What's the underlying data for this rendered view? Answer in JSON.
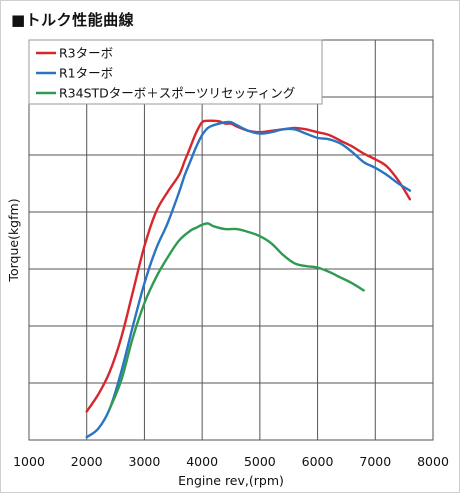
{
  "chart_data": {
    "type": "line",
    "title": "■トルク性能曲線",
    "xlabel": "Engine rev,(rpm)",
    "ylabel": "Torque(kgfm)",
    "xlim": [
      1000,
      8000
    ],
    "xticks": [
      "1000",
      "2000",
      "3000",
      "4000",
      "5000",
      "6000",
      "7000",
      "8000"
    ],
    "y_tick_labels_shown": false,
    "grid": true,
    "legend_position": "top-left",
    "series": [
      {
        "name": "R3ターボ",
        "color": "#d7272d",
        "x": [
          2000,
          2200,
          2400,
          2600,
          2800,
          3000,
          3200,
          3400,
          3600,
          3700,
          3800,
          3900,
          4000,
          4100,
          4200,
          4300,
          4400,
          4500,
          4600,
          4800,
          5000,
          5200,
          5400,
          5600,
          5800,
          6000,
          6200,
          6400,
          6600,
          6800,
          7000,
          7200,
          7400,
          7600
        ],
        "y": [
          0.1,
          0.16,
          0.24,
          0.36,
          0.52,
          0.68,
          0.8,
          0.87,
          0.93,
          0.98,
          1.03,
          1.08,
          1.115,
          1.12,
          1.12,
          1.118,
          1.11,
          1.11,
          1.1,
          1.085,
          1.08,
          1.085,
          1.09,
          1.095,
          1.09,
          1.08,
          1.07,
          1.05,
          1.03,
          1.005,
          0.985,
          0.96,
          0.91,
          0.845
        ]
      },
      {
        "name": "R1ターボ",
        "color": "#2a74c1",
        "x": [
          2000,
          2200,
          2400,
          2600,
          2800,
          3000,
          3200,
          3400,
          3600,
          3700,
          3800,
          3900,
          4000,
          4100,
          4200,
          4300,
          4400,
          4500,
          4600,
          4800,
          5000,
          5200,
          5400,
          5600,
          5800,
          6000,
          6200,
          6400,
          6600,
          6800,
          7000,
          7200,
          7400,
          7600
        ],
        "y": [
          0.01,
          0.04,
          0.11,
          0.24,
          0.4,
          0.55,
          0.67,
          0.76,
          0.87,
          0.93,
          0.98,
          1.03,
          1.07,
          1.095,
          1.105,
          1.11,
          1.115,
          1.115,
          1.105,
          1.085,
          1.075,
          1.08,
          1.09,
          1.09,
          1.075,
          1.06,
          1.055,
          1.04,
          1.01,
          0.975,
          0.955,
          0.93,
          0.9,
          0.875
        ]
      },
      {
        "name": "R34STDターボ＋スポーツリセッティング",
        "color": "#2f9a52",
        "x": [
          2400,
          2600,
          2800,
          3000,
          3200,
          3400,
          3600,
          3800,
          3900,
          4000,
          4100,
          4200,
          4400,
          4600,
          4800,
          5000,
          5200,
          5400,
          5600,
          5800,
          6000,
          6200,
          6400,
          6600,
          6800
        ],
        "y": [
          0.11,
          0.21,
          0.36,
          0.48,
          0.57,
          0.64,
          0.7,
          0.735,
          0.745,
          0.755,
          0.76,
          0.75,
          0.74,
          0.74,
          0.73,
          0.715,
          0.69,
          0.65,
          0.62,
          0.61,
          0.605,
          0.59,
          0.57,
          0.55,
          0.525
        ]
      }
    ]
  }
}
